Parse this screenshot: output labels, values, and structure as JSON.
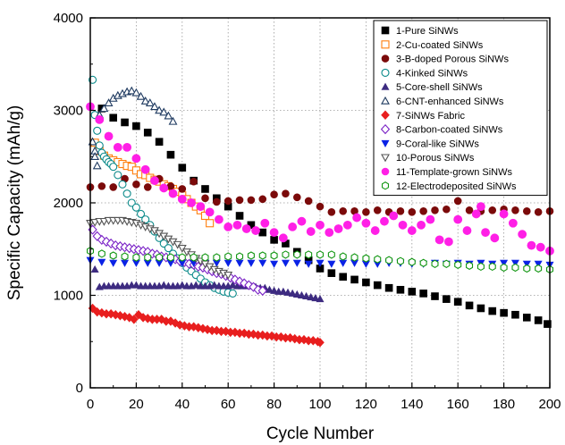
{
  "chart_data": {
    "type": "scatter",
    "xlabel": "Cycle Number",
    "ylabel": "Specific Capacity (mAh/g)",
    "xlim": [
      0,
      200
    ],
    "ylim": [
      0,
      4000
    ],
    "xticks": [
      "0",
      "20",
      "40",
      "60",
      "80",
      "100",
      "120",
      "140",
      "160",
      "180",
      "200"
    ],
    "yticks": [
      "0",
      "1000",
      "2000",
      "3000",
      "4000"
    ],
    "grid": true,
    "grid_style": "dotted",
    "legend_position": "top-right",
    "series": [
      {
        "name": "1-Pure SiNWs",
        "marker": "square-filled",
        "color": "#000000",
        "x": [
          5,
          10,
          15,
          20,
          25,
          30,
          35,
          40,
          45,
          50,
          55,
          60,
          65,
          70,
          75,
          80,
          85,
          90,
          95,
          100,
          105,
          110,
          115,
          120,
          125,
          130,
          135,
          140,
          145,
          150,
          155,
          160,
          165,
          170,
          175,
          180,
          185,
          190,
          195,
          199
        ],
        "y": [
          3020,
          2920,
          2870,
          2830,
          2760,
          2660,
          2520,
          2380,
          2240,
          2150,
          2050,
          1960,
          1860,
          1760,
          1680,
          1600,
          1560,
          1470,
          1380,
          1290,
          1240,
          1200,
          1170,
          1140,
          1110,
          1080,
          1060,
          1040,
          1020,
          990,
          960,
          930,
          890,
          860,
          830,
          810,
          790,
          760,
          730,
          690
        ]
      },
      {
        "name": "2-Cu-coated SiNWs",
        "marker": "square-open",
        "color": "#ff7f0e",
        "x": [
          2,
          4,
          6,
          8,
          10,
          12,
          14,
          16,
          18,
          20,
          22,
          24,
          26,
          28,
          30,
          32,
          34,
          36,
          38,
          40,
          42,
          44,
          46,
          48,
          50,
          52
        ],
        "y": [
          2650,
          2560,
          2510,
          2480,
          2460,
          2440,
          2420,
          2400,
          2390,
          2350,
          2310,
          2300,
          2270,
          2250,
          2230,
          2200,
          2180,
          2150,
          2120,
          2080,
          2040,
          2000,
          1960,
          1920,
          1860,
          1780
        ]
      },
      {
        "name": "3-B-doped Porous SiNWs",
        "marker": "circle-filled",
        "color": "#7b0a0a",
        "x": [
          0,
          5,
          10,
          15,
          20,
          25,
          30,
          35,
          40,
          45,
          50,
          55,
          60,
          65,
          70,
          75,
          80,
          85,
          90,
          95,
          100,
          105,
          110,
          115,
          120,
          125,
          130,
          135,
          140,
          145,
          150,
          155,
          160,
          165,
          170,
          175,
          180,
          185,
          190,
          195,
          200
        ],
        "y": [
          2170,
          2180,
          2170,
          2260,
          2200,
          2170,
          2260,
          2180,
          2150,
          2230,
          2050,
          2010,
          2020,
          2030,
          2030,
          2040,
          2090,
          2100,
          2060,
          2020,
          1960,
          1900,
          1910,
          1910,
          1900,
          1920,
          1900,
          1910,
          1900,
          1910,
          1920,
          1930,
          2020,
          1920,
          1910,
          1920,
          1930,
          1920,
          1910,
          1900,
          1910
        ]
      },
      {
        "name": "4-Kinked SiNWs",
        "marker": "circle-open",
        "color": "#0b8a8a",
        "x": [
          1,
          2,
          3,
          4,
          5,
          6,
          7,
          8,
          9,
          10,
          12,
          14,
          16,
          18,
          20,
          22,
          24,
          26,
          28,
          30,
          32,
          34,
          36,
          38,
          40,
          42,
          44,
          46,
          48,
          50,
          52,
          54,
          56,
          58,
          60,
          62
        ],
        "y": [
          3330,
          2950,
          2780,
          2620,
          2540,
          2500,
          2470,
          2440,
          2420,
          2390,
          2300,
          2200,
          2100,
          2000,
          1950,
          1880,
          1820,
          1760,
          1690,
          1620,
          1560,
          1510,
          1450,
          1400,
          1350,
          1300,
          1260,
          1220,
          1180,
          1140,
          1110,
          1080,
          1060,
          1040,
          1030,
          1020
        ]
      },
      {
        "name": "5-Core-shell SiNWs",
        "marker": "triangle-filled",
        "color": "#3d2b80",
        "x": [
          2,
          4,
          6,
          8,
          10,
          12,
          14,
          16,
          18,
          20,
          22,
          24,
          26,
          28,
          30,
          32,
          34,
          36,
          38,
          40,
          42,
          44,
          46,
          48,
          50,
          52,
          54,
          56,
          58,
          60,
          62,
          64,
          66,
          68,
          70,
          72,
          74,
          76,
          78,
          80,
          82,
          84,
          86,
          88,
          90,
          92,
          94,
          96,
          98,
          100
        ],
        "y": [
          1280,
          1090,
          1100,
          1100,
          1100,
          1100,
          1100,
          1100,
          1110,
          1110,
          1100,
          1100,
          1100,
          1100,
          1100,
          1110,
          1100,
          1100,
          1100,
          1110,
          1100,
          1100,
          1110,
          1100,
          1100,
          1100,
          1110,
          1100,
          1100,
          1100,
          1110,
          1100,
          1100,
          1100,
          1100,
          1090,
          1080,
          1080,
          1060,
          1050,
          1040,
          1040,
          1030,
          1020,
          1010,
          1000,
          990,
          980,
          970,
          960
        ]
      },
      {
        "name": "6-CNT-enhanced SiNWs",
        "marker": "triangle-open",
        "color": "#1f3a60",
        "x": [
          2,
          4,
          6,
          8,
          10,
          12,
          14,
          16,
          18,
          20,
          22,
          24,
          26,
          28,
          30,
          32,
          34,
          36,
          1,
          2,
          3
        ],
        "y": [
          2560,
          2950,
          3020,
          3080,
          3130,
          3160,
          3180,
          3200,
          3210,
          3190,
          3150,
          3100,
          3080,
          3040,
          3000,
          2980,
          2940,
          2880,
          2660,
          2500,
          2400
        ]
      },
      {
        "name": "7-SiNWs Fabric",
        "marker": "diamond-filled",
        "color": "#e81e1e",
        "x": [
          1,
          3,
          5,
          7,
          9,
          11,
          13,
          15,
          17,
          19,
          21,
          23,
          25,
          27,
          29,
          31,
          33,
          35,
          37,
          39,
          41,
          43,
          45,
          47,
          49,
          51,
          53,
          55,
          57,
          59,
          61,
          63,
          65,
          67,
          69,
          71,
          73,
          75,
          77,
          79,
          81,
          83,
          85,
          87,
          89,
          91,
          93,
          95,
          97,
          99,
          100
        ],
        "y": [
          860,
          820,
          810,
          800,
          800,
          790,
          780,
          770,
          760,
          740,
          790,
          760,
          750,
          740,
          740,
          740,
          720,
          720,
          700,
          680,
          670,
          660,
          660,
          650,
          640,
          630,
          620,
          620,
          610,
          610,
          600,
          600,
          590,
          590,
          580,
          580,
          570,
          570,
          560,
          560,
          550,
          550,
          540,
          540,
          530,
          520,
          520,
          510,
          510,
          500,
          490
        ]
      },
      {
        "name": "8-Carbon-coated SiNWs",
        "marker": "diamond-open",
        "color": "#7a22c6",
        "x": [
          1,
          3,
          5,
          7,
          9,
          11,
          13,
          15,
          17,
          19,
          21,
          23,
          25,
          27,
          29,
          31,
          33,
          35,
          37,
          39,
          41,
          43,
          45,
          47,
          49,
          51,
          53,
          55,
          57,
          59,
          61,
          63,
          65,
          67,
          69,
          71,
          73,
          75
        ],
        "y": [
          1710,
          1640,
          1600,
          1580,
          1560,
          1540,
          1530,
          1520,
          1510,
          1500,
          1490,
          1480,
          1470,
          1450,
          1440,
          1420,
          1410,
          1400,
          1390,
          1370,
          1360,
          1340,
          1330,
          1310,
          1300,
          1280,
          1260,
          1240,
          1230,
          1210,
          1190,
          1170,
          1150,
          1130,
          1110,
          1090,
          1060,
          1050
        ]
      },
      {
        "name": "9-Coral-like SiNWs",
        "marker": "triangle-down-filled",
        "color": "#0a22e6",
        "x": [
          0,
          5,
          10,
          15,
          20,
          25,
          30,
          35,
          40,
          45,
          50,
          55,
          60,
          65,
          70,
          75,
          80,
          85,
          90,
          95,
          100,
          105,
          110,
          115,
          120,
          125,
          130,
          135,
          140,
          145,
          150,
          155,
          160,
          165,
          170,
          175,
          180,
          185,
          190,
          195,
          200
        ],
        "y": [
          1380,
          1360,
          1350,
          1350,
          1350,
          1350,
          1350,
          1350,
          1350,
          1350,
          1350,
          1350,
          1350,
          1350,
          1350,
          1350,
          1340,
          1350,
          1350,
          1340,
          1350,
          1340,
          1350,
          1350,
          1340,
          1340,
          1350,
          1350,
          1340,
          1340,
          1350,
          1340,
          1350,
          1340,
          1350,
          1340,
          1350,
          1350,
          1340,
          1340,
          1330
        ]
      },
      {
        "name": "10-Porous SiNWs",
        "marker": "triangle-down-open",
        "color": "#555555",
        "x": [
          0,
          2,
          4,
          6,
          8,
          10,
          12,
          14,
          16,
          18,
          20,
          22,
          24,
          26,
          28,
          30,
          32,
          34,
          36,
          38,
          40,
          42,
          44,
          46,
          48,
          50,
          52,
          54,
          56,
          58,
          60
        ],
        "y": [
          1780,
          1790,
          1800,
          1800,
          1810,
          1810,
          1810,
          1810,
          1800,
          1790,
          1780,
          1760,
          1740,
          1720,
          1700,
          1670,
          1640,
          1610,
          1580,
          1550,
          1510,
          1470,
          1440,
          1400,
          1370,
          1340,
          1310,
          1280,
          1260,
          1240,
          1220
        ]
      },
      {
        "name": "11-Template-grown SiNWs",
        "marker": "circle-filled",
        "color": "#ff1fe6",
        "x": [
          0,
          4,
          8,
          12,
          16,
          20,
          24,
          28,
          32,
          36,
          40,
          44,
          48,
          52,
          56,
          60,
          64,
          68,
          72,
          76,
          80,
          84,
          88,
          92,
          96,
          100,
          104,
          108,
          112,
          116,
          120,
          124,
          128,
          132,
          136,
          140,
          144,
          148,
          152,
          156,
          160,
          164,
          168,
          170,
          172,
          176,
          180,
          184,
          188,
          192,
          196,
          200
        ],
        "y": [
          3040,
          2900,
          2720,
          2600,
          2600,
          2480,
          2360,
          2240,
          2160,
          2100,
          2040,
          2000,
          1960,
          1900,
          1820,
          1740,
          1760,
          1720,
          1700,
          1780,
          1680,
          1620,
          1740,
          1800,
          1690,
          1760,
          1680,
          1720,
          1760,
          1840,
          1780,
          1700,
          1800,
          1860,
          1760,
          1700,
          1760,
          1820,
          1600,
          1580,
          1820,
          1700,
          1880,
          1960,
          1680,
          1620,
          1880,
          1780,
          1660,
          1540,
          1520,
          1480
        ]
      },
      {
        "name": "12-Electrodeposited SiNWs",
        "marker": "hexagon-open",
        "color": "#119611",
        "x": [
          0,
          5,
          10,
          15,
          20,
          25,
          30,
          35,
          40,
          45,
          50,
          55,
          60,
          65,
          70,
          75,
          80,
          85,
          90,
          95,
          100,
          105,
          110,
          115,
          120,
          125,
          130,
          135,
          140,
          145,
          150,
          155,
          160,
          165,
          170,
          175,
          180,
          185,
          190,
          195,
          200
        ],
        "y": [
          1480,
          1450,
          1430,
          1420,
          1410,
          1410,
          1410,
          1410,
          1410,
          1410,
          1410,
          1410,
          1420,
          1420,
          1430,
          1430,
          1430,
          1440,
          1440,
          1440,
          1440,
          1440,
          1420,
          1410,
          1400,
          1390,
          1380,
          1370,
          1360,
          1350,
          1340,
          1340,
          1330,
          1320,
          1310,
          1310,
          1300,
          1300,
          1290,
          1290,
          1280
        ]
      }
    ]
  }
}
